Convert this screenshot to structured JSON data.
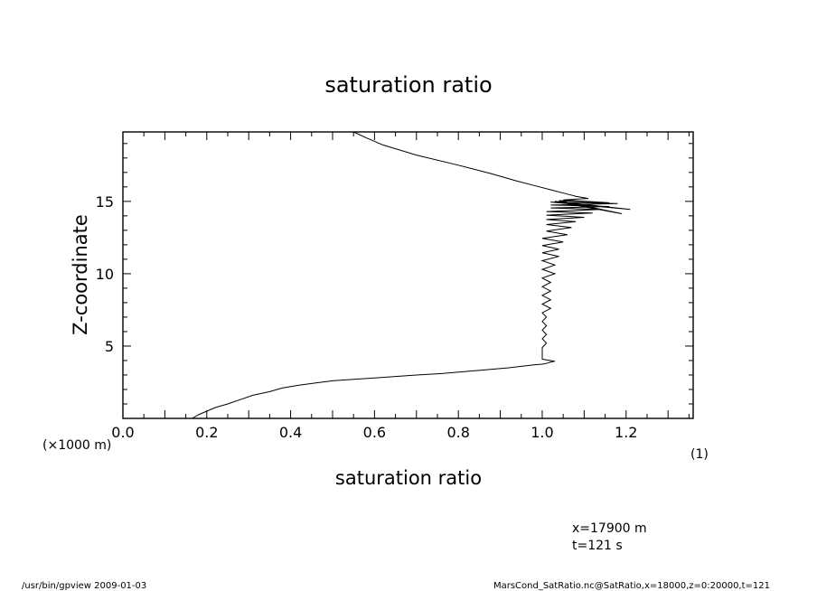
{
  "chart_data": {
    "type": "line",
    "title": "saturation ratio",
    "xlabel": "saturation ratio",
    "ylabel": "Z-coordinate",
    "y_unit_note": "(×1000 m)",
    "frame_note": "(1)",
    "xlim": [
      0.0,
      1.36
    ],
    "ylim": [
      0,
      19.8
    ],
    "x_ticks": [
      0.0,
      0.2,
      0.4,
      0.6,
      0.8,
      1.0,
      1.2
    ],
    "x_tick_labels": [
      "0.0",
      "0.2",
      "0.4",
      "0.6",
      "0.8",
      "1.0",
      "1.2"
    ],
    "y_ticks": [
      5,
      10,
      15
    ],
    "y_tick_labels": [
      "5",
      "10",
      "15"
    ],
    "grid": false,
    "series": [
      {
        "x": [
          0.165,
          0.18,
          0.2,
          0.22,
          0.25,
          0.28,
          0.31,
          0.35,
          0.38,
          0.42,
          0.46,
          0.5,
          0.55,
          0.6,
          0.65,
          0.7,
          0.76,
          0.82,
          0.88,
          0.92,
          0.95,
          0.98,
          1.0,
          1.01,
          1.02,
          1.03,
          1.02,
          1.01,
          1.0,
          1.0,
          1.0,
          1.01,
          1.0,
          1.01,
          1.0,
          1.01,
          1.0,
          1.01,
          1.0,
          1.02,
          1.0,
          1.02,
          1.0,
          1.02,
          1.0,
          1.02,
          1.0,
          1.03,
          1.0,
          1.03,
          1.0,
          1.04,
          1.0,
          1.04,
          1.0,
          1.05,
          1.0,
          1.06,
          1.01,
          1.07,
          1.01,
          1.08,
          1.01,
          1.1,
          1.01,
          1.12,
          1.01,
          1.14,
          1.02,
          1.16,
          1.02,
          1.18,
          1.02,
          1.21,
          1.03,
          1.19,
          1.04,
          1.16,
          1.05,
          1.11,
          1.08,
          1.06,
          1.02,
          0.98,
          0.94,
          0.88,
          0.8,
          0.7,
          0.62,
          0.58,
          0.55
        ],
        "y": [
          0.0,
          0.25,
          0.5,
          0.75,
          1.0,
          1.3,
          1.6,
          1.85,
          2.1,
          2.3,
          2.45,
          2.6,
          2.7,
          2.8,
          2.9,
          3.0,
          3.1,
          3.25,
          3.4,
          3.5,
          3.6,
          3.7,
          3.75,
          3.8,
          3.9,
          3.95,
          4.0,
          4.05,
          4.1,
          4.5,
          4.9,
          5.2,
          5.5,
          5.8,
          6.1,
          6.4,
          6.7,
          7.0,
          7.3,
          7.6,
          7.9,
          8.2,
          8.5,
          8.8,
          9.1,
          9.4,
          9.7,
          10.0,
          10.3,
          10.6,
          10.9,
          11.2,
          11.45,
          11.7,
          11.95,
          12.2,
          12.45,
          12.7,
          12.95,
          13.2,
          13.4,
          13.6,
          13.75,
          13.9,
          14.05,
          14.2,
          14.3,
          14.45,
          14.55,
          14.65,
          14.75,
          14.85,
          14.95,
          14.45,
          15.0,
          14.15,
          15.05,
          14.9,
          15.1,
          15.2,
          15.35,
          15.5,
          15.8,
          16.1,
          16.4,
          16.9,
          17.5,
          18.2,
          18.9,
          19.4,
          19.8
        ]
      }
    ]
  },
  "annotations": {
    "x_position": "x=17900  m",
    "time": "t=121  s"
  },
  "footer": {
    "left": "/usr/bin/gpview   2009-01-03",
    "right": "MarsCond_SatRatio.nc@SatRatio,x=18000,z=0:20000,t=121"
  }
}
